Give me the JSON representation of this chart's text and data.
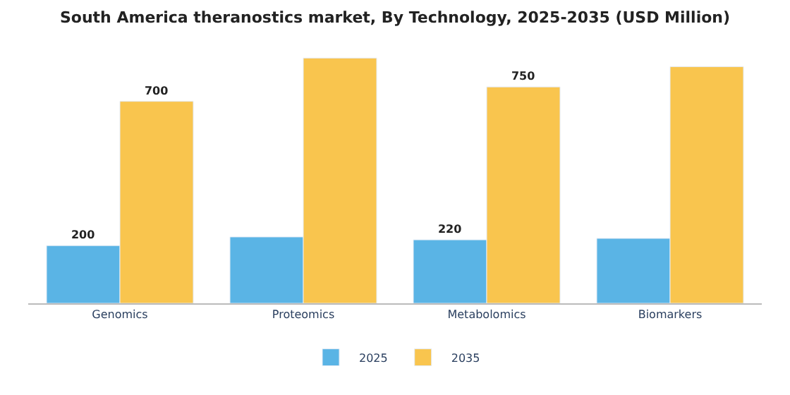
{
  "chart_data": {
    "type": "bar",
    "title": "South America theranostics market, By Technology, 2025-2035 (USD Million)",
    "categories": [
      "Genomics",
      "Proteomics",
      "Metabolomics",
      "Biomarkers"
    ],
    "series": [
      {
        "name": "2025",
        "color": "#5ab4e5",
        "values": [
          200,
          230,
          220,
          225
        ],
        "value_labels": [
          "200",
          null,
          "220",
          null
        ]
      },
      {
        "name": "2035",
        "color": "#f9c54e",
        "values": [
          700,
          850,
          750,
          820
        ],
        "value_labels": [
          "700",
          null,
          "750",
          null
        ]
      }
    ],
    "legend": "bottom"
  }
}
